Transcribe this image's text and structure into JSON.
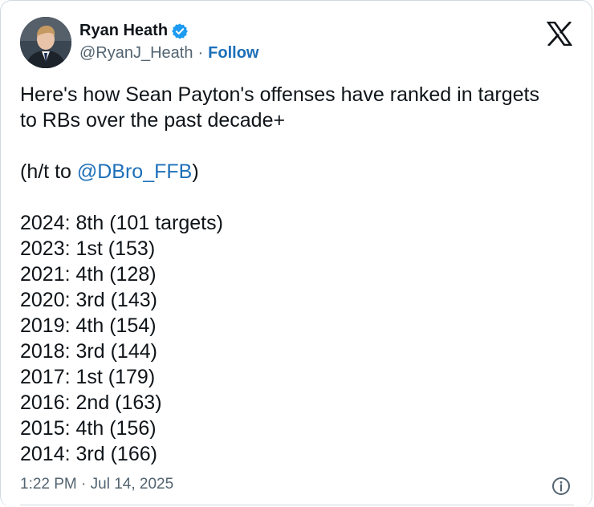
{
  "author": {
    "display_name": "Ryan Heath",
    "handle": "@RyanJ_Heath",
    "separator": "·",
    "follow_label": "Follow",
    "verified_icon": "verified-badge-icon",
    "verified_color": "#1d9bf0"
  },
  "tweet": {
    "line1": "Here's how Sean Payton's offenses have ranked in targets",
    "line2": "to RBs over the past decade+",
    "hat_tip_prefix": "(h/t to ",
    "hat_tip_mention": "@DBro_FFB",
    "hat_tip_suffix": ")",
    "rankings": [
      "2024: 8th (101 targets)",
      "2023: 1st (153)",
      "2021: 4th (128)",
      "2020: 3rd (143)",
      "2019: 4th (154)",
      "2018: 3rd (144)",
      "2017: 1st (179)",
      "2016: 2nd (163)",
      "2015: 4th (156)",
      "2014: 3rd (166)"
    ]
  },
  "footer": {
    "timestamp": "1:22 PM · Jul 14, 2025",
    "info_icon": "info-icon"
  },
  "colors": {
    "link": "#1d6fb8",
    "text": "#0f1419",
    "muted": "#536471",
    "border": "#cfd9de"
  }
}
